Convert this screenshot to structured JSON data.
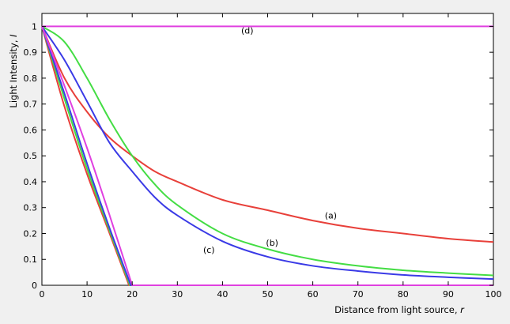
{
  "chart_data": {
    "type": "line",
    "xlabel": "Distance from light source,",
    "xlabel_var": "r",
    "ylabel": "Light Intensity,",
    "ylabel_var": "I",
    "xlim": [
      0,
      100
    ],
    "ylim": [
      0,
      1.05
    ],
    "grid": false,
    "x_ticks": [
      "0",
      "10",
      "20",
      "30",
      "40",
      "50",
      "60",
      "70",
      "80",
      "90",
      "100"
    ],
    "y_ticks": [
      "0",
      "0.1",
      "0.2",
      "0.3",
      "0.4",
      "0.5",
      "0.6",
      "0.7",
      "0.8",
      "0.9",
      "1"
    ],
    "colors": {
      "red": "#e8403a",
      "green": "#44dd44",
      "blue": "#3a3ae6",
      "magenta": "#e040e0",
      "background": "#f0f0f0",
      "plot_background": "#ffffff"
    },
    "annotations": [
      {
        "text": "(a)",
        "x": 64,
        "y": 0.27
      },
      {
        "text": "(b)",
        "x": 51,
        "y": 0.165
      },
      {
        "text": "(c)",
        "x": 37,
        "y": 0.137
      },
      {
        "text": "(d)",
        "x": 45.5,
        "y": 0.985
      }
    ],
    "series": [
      {
        "color": "red",
        "x": [
          0,
          5,
          10,
          15,
          20,
          25,
          30,
          40,
          50,
          60,
          70,
          80,
          90,
          100
        ],
        "y": [
          1.0,
          0.8,
          0.67,
          0.57,
          0.5,
          0.44,
          0.4,
          0.33,
          0.29,
          0.25,
          0.22,
          0.2,
          0.18,
          0.167
        ]
      },
      {
        "color": "green",
        "x": [
          0,
          5,
          10,
          15,
          20,
          25,
          30,
          40,
          50,
          60,
          70,
          80,
          90,
          100
        ],
        "y": [
          1.0,
          0.94,
          0.8,
          0.64,
          0.5,
          0.39,
          0.31,
          0.2,
          0.14,
          0.1,
          0.075,
          0.058,
          0.047,
          0.038
        ]
      },
      {
        "color": "blue",
        "x": [
          0,
          5,
          10,
          15,
          20,
          25,
          30,
          40,
          50,
          60,
          70,
          80,
          90,
          100
        ],
        "y": [
          1.0,
          0.87,
          0.71,
          0.55,
          0.44,
          0.34,
          0.27,
          0.17,
          0.11,
          0.075,
          0.055,
          0.04,
          0.031,
          0.024
        ]
      },
      {
        "color": "magenta",
        "x": [
          0,
          100
        ],
        "y": [
          1.0,
          1.0
        ]
      },
      {
        "color": "red",
        "x": [
          0,
          5,
          10,
          15,
          19.3,
          100
        ],
        "y": [
          1.0,
          0.69,
          0.43,
          0.2,
          0.0,
          0.0
        ]
      },
      {
        "color": "green",
        "x": [
          0,
          5,
          10,
          15,
          19.5,
          100
        ],
        "y": [
          1.0,
          0.72,
          0.45,
          0.21,
          0.0,
          0.0
        ]
      },
      {
        "color": "blue",
        "x": [
          0,
          5,
          10,
          15,
          19.7,
          100
        ],
        "y": [
          1.0,
          0.74,
          0.47,
          0.22,
          0.0,
          0.0
        ]
      },
      {
        "color": "magenta",
        "x": [
          0,
          5,
          10,
          15,
          20,
          100
        ],
        "y": [
          1.0,
          0.77,
          0.53,
          0.27,
          0.0,
          0.0
        ]
      }
    ]
  }
}
